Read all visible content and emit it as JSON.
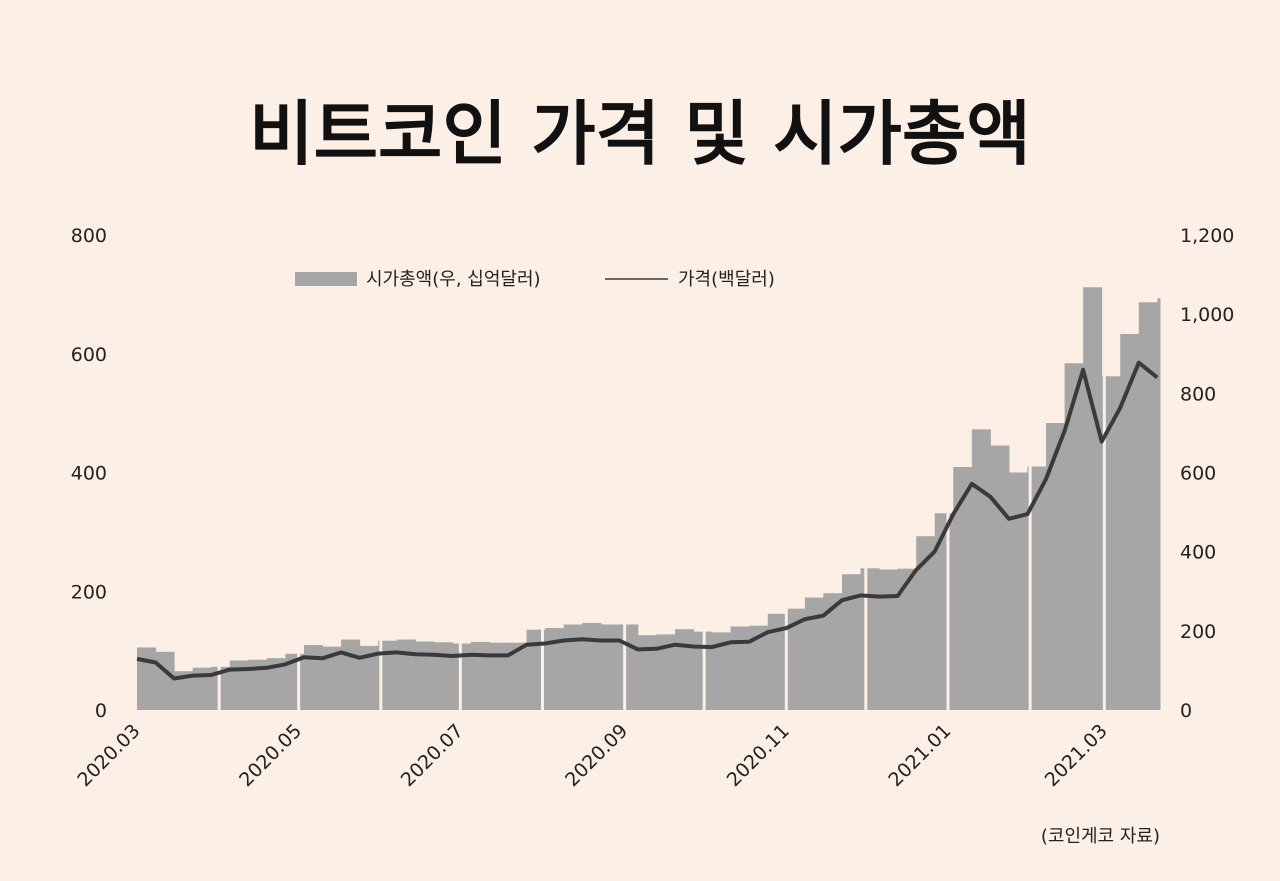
{
  "chart_data": {
    "type": "bar+line",
    "title": "비트코인 가격 및 시가총액",
    "source": "(코인게코  자료)",
    "legend_placement": "top-left",
    "left_axis": {
      "ylim": [
        0,
        800
      ],
      "ticks": [
        "0",
        "200",
        "400",
        "600",
        "800"
      ],
      "tick_values": [
        0,
        200,
        400,
        600,
        800
      ]
    },
    "right_axis": {
      "ylim": [
        0,
        1200
      ],
      "ticks": [
        "0",
        "200",
        "400",
        "600",
        "800",
        "1,000",
        "1,200"
      ],
      "tick_values": [
        0,
        200,
        400,
        600,
        800,
        1000,
        1200
      ]
    },
    "x_ticks": [
      "2020.03",
      "2020.05",
      "2020.07",
      "2020.09",
      "2020.11",
      "2021.01",
      "2021.03"
    ],
    "x_tick_dates": [
      "2020-03-01",
      "2020-05-01",
      "2020-07-01",
      "2020-09-01",
      "2020-11-01",
      "2021-01-01",
      "2021-03-01"
    ],
    "x_range": [
      "2020-03-01",
      "2021-03-22"
    ],
    "grid": false,
    "dates": [
      "2020-03-01",
      "2020-03-08",
      "2020-03-15",
      "2020-03-22",
      "2020-03-29",
      "2020-04-05",
      "2020-04-12",
      "2020-04-19",
      "2020-04-26",
      "2020-05-03",
      "2020-05-10",
      "2020-05-17",
      "2020-05-24",
      "2020-05-31",
      "2020-06-07",
      "2020-06-14",
      "2020-06-21",
      "2020-06-28",
      "2020-07-05",
      "2020-07-12",
      "2020-07-19",
      "2020-07-26",
      "2020-08-02",
      "2020-08-09",
      "2020-08-16",
      "2020-08-23",
      "2020-08-30",
      "2020-09-06",
      "2020-09-13",
      "2020-09-20",
      "2020-09-27",
      "2020-10-04",
      "2020-10-11",
      "2020-10-18",
      "2020-10-25",
      "2020-11-01",
      "2020-11-08",
      "2020-11-15",
      "2020-11-22",
      "2020-11-29",
      "2020-12-06",
      "2020-12-13",
      "2020-12-20",
      "2020-12-27",
      "2021-01-03",
      "2021-01-10",
      "2021-01-17",
      "2021-01-24",
      "2021-01-31",
      "2021-02-07",
      "2021-02-14",
      "2021-02-21",
      "2021-02-28",
      "2021-03-07",
      "2021-03-14",
      "2021-03-21"
    ],
    "series": [
      {
        "name": "시가총액(우,  십억달러)",
        "type": "bar",
        "axis": "right",
        "color": "#a6a6a6",
        "values": [
          158,
          147,
          98,
          107,
          109,
          125,
          127,
          131,
          142,
          164,
          160,
          178,
          162,
          175,
          178,
          173,
          171,
          168,
          172,
          170,
          170,
          203,
          207,
          216,
          220,
          216,
          216,
          189,
          191,
          204,
          198,
          196,
          211,
          213,
          243,
          256,
          284,
          295,
          343,
          358,
          355,
          357,
          439,
          497,
          614,
          709,
          668,
          600,
          615,
          725,
          876,
          1068,
          843,
          950,
          1030,
          1040
        ]
      },
      {
        "name": "가격(백달러)",
        "type": "line",
        "axis": "left",
        "color": "#3a3a3a",
        "values": [
          86,
          80,
          53,
          58,
          59,
          68,
          69,
          71,
          77,
          89,
          87,
          97,
          88,
          95,
          97,
          94,
          93,
          91,
          93,
          92,
          92,
          110,
          112,
          117,
          119,
          117,
          117,
          102,
          103,
          110,
          107,
          106,
          114,
          115,
          131,
          138,
          153,
          159,
          185,
          193,
          191,
          192,
          236,
          267,
          330,
          381,
          359,
          322,
          330,
          389,
          470,
          573,
          452,
          509,
          585,
          560
        ]
      }
    ]
  }
}
